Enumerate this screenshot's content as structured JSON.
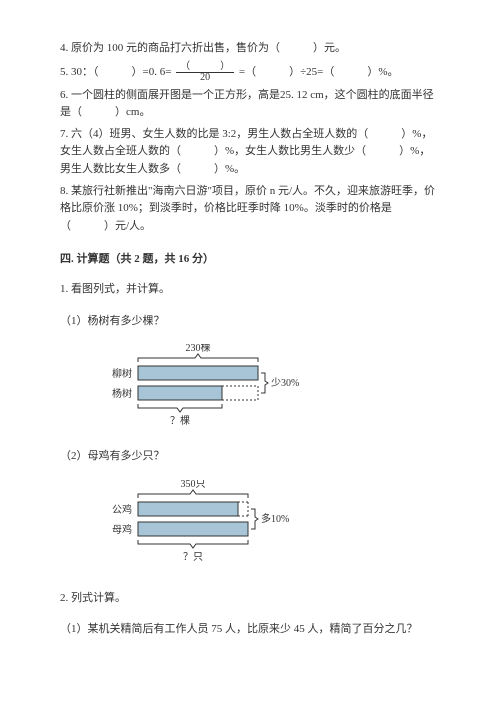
{
  "q4": "4. 原价为 100 元的商品打六折出售，售价为（　　　）元。",
  "q5_a": "5. 30：（　　　）=0. 6=",
  "q5_frac_num": "（　　　）",
  "q5_frac_den": "20",
  "q5_b": " =（　　　）÷25=（　　　）%。",
  "q6": "6. 一个圆柱的侧面展开图是一个正方形，高是25. 12 cm，这个圆柱的底面半径是（　　　）cm。",
  "q7": "7. 六（4）班男、女生人数的比是 3:2，男生人数占全班人数的（　　　）%，女生人数占全班人数的（　　　）%，女生人数比男生人数少（　　　）%，男生人数比女生人数多（　　　）%。",
  "q8": "8. 某旅行社新推出\"海南六日游\"项目，原价 n 元/人。不久，迎来旅游旺季，价格比原价涨 10%；到淡季时，价格比旺季时降 10%。淡季时的价格是（　　　）元/人。",
  "section4_title": "四. 计算题（共 2 题，共 16 分）",
  "s4_q1": "1. 看图列式，并计算。",
  "s4_q1_1": "（1）杨树有多少棵？",
  "s4_q1_2": "（2）母鸡有多少只？",
  "s4_q2": "2. 列式计算。",
  "s4_q2_1": "（1）某机关精简后有工作人员 75 人，比原来少 45 人，精简了百分之几？",
  "diagram1": {
    "top_label": "230棵",
    "left_label1": "柳树",
    "left_label2": "杨树",
    "right_label": "少30%",
    "bottom_label": "？棵",
    "bar_color": "#a8c5d8",
    "outline": "#333333",
    "bar1_width": 120,
    "bar2_width": 84
  },
  "diagram2": {
    "top_label": "350只",
    "left_label1": "公鸡",
    "left_label2": "母鸡",
    "right_label": "多10%",
    "bottom_label": "？只",
    "bar_color": "#a8c5d8",
    "outline": "#333333",
    "bar1_width": 100,
    "bar2_width": 110
  }
}
